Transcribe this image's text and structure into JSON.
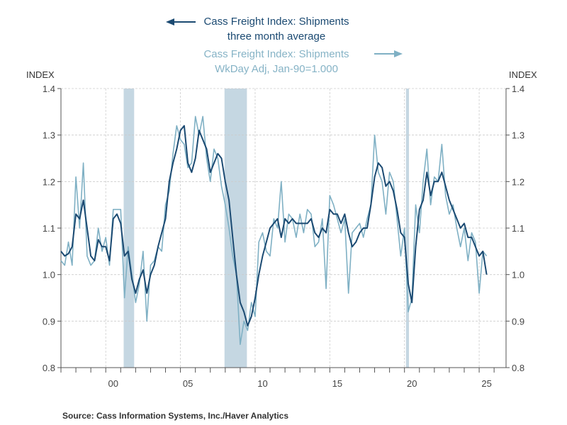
{
  "chart_data": {
    "type": "line",
    "legend": {
      "avg_line1": "Cass Freight Index: Shipments",
      "avg_line2": "three month average",
      "raw_line1": "Cass Freight Index: Shipments",
      "raw_line2": "WkDay Adj, Jan-90=1.000"
    },
    "ylabel_left": "INDEX",
    "ylabel_right": "INDEX",
    "ylim": [
      0.8,
      1.4
    ],
    "yticks": [
      "0.8",
      "0.9",
      "1.0",
      "1.1",
      "1.2",
      "1.3",
      "1.4"
    ],
    "xlim": [
      1997.0,
      2026.8
    ],
    "xtick_labels": [
      "00",
      "05",
      "10",
      "15",
      "20",
      "25"
    ],
    "xtick_years": [
      2000,
      2005,
      2010,
      2015,
      2020,
      2025
    ],
    "grid": true,
    "recessions": [
      [
        2001.2,
        2001.9
      ],
      [
        2007.95,
        2009.45
      ],
      [
        2020.1,
        2020.3
      ]
    ],
    "colors": {
      "avg": "#1b4a72",
      "raw": "#7fb0c4",
      "recession": "#c5d7e2"
    },
    "series": [
      {
        "name": "Cass Freight Index: Shipments three month average",
        "axis": "left",
        "x": [
          1997.0,
          1997.25,
          1997.5,
          1997.75,
          1998.0,
          1998.25,
          1998.5,
          1998.75,
          1999.0,
          1999.25,
          1999.5,
          1999.75,
          2000.0,
          2000.25,
          2000.5,
          2000.75,
          2001.0,
          2001.25,
          2001.5,
          2001.75,
          2002.0,
          2002.25,
          2002.5,
          2002.75,
          2003.0,
          2003.25,
          2003.5,
          2003.75,
          2004.0,
          2004.25,
          2004.5,
          2004.75,
          2005.0,
          2005.25,
          2005.5,
          2005.75,
          2006.0,
          2006.25,
          2006.5,
          2006.75,
          2007.0,
          2007.25,
          2007.5,
          2007.75,
          2008.0,
          2008.25,
          2008.5,
          2008.75,
          2009.0,
          2009.25,
          2009.5,
          2009.75,
          2010.0,
          2010.25,
          2010.5,
          2010.75,
          2011.0,
          2011.25,
          2011.5,
          2011.75,
          2012.0,
          2012.25,
          2012.5,
          2012.75,
          2013.0,
          2013.25,
          2013.5,
          2013.75,
          2014.0,
          2014.25,
          2014.5,
          2014.75,
          2015.0,
          2015.25,
          2015.5,
          2015.75,
          2016.0,
          2016.25,
          2016.5,
          2016.75,
          2017.0,
          2017.25,
          2017.5,
          2017.75,
          2018.0,
          2018.25,
          2018.5,
          2018.75,
          2019.0,
          2019.25,
          2019.5,
          2019.75,
          2020.0,
          2020.25,
          2020.5,
          2020.75,
          2021.0,
          2021.25,
          2021.5,
          2021.75,
          2022.0,
          2022.25,
          2022.5,
          2022.75,
          2023.0,
          2023.25,
          2023.5,
          2023.75,
          2024.0,
          2024.25,
          2024.5,
          2024.75,
          2025.0,
          2025.25,
          2025.5
        ],
        "values": [
          1.05,
          1.04,
          1.045,
          1.06,
          1.13,
          1.12,
          1.16,
          1.1,
          1.04,
          1.03,
          1.075,
          1.06,
          1.06,
          1.03,
          1.12,
          1.13,
          1.11,
          1.04,
          1.05,
          0.99,
          0.96,
          0.99,
          1.01,
          0.96,
          1.0,
          1.02,
          1.06,
          1.09,
          1.12,
          1.2,
          1.24,
          1.27,
          1.31,
          1.32,
          1.24,
          1.22,
          1.25,
          1.31,
          1.29,
          1.27,
          1.22,
          1.24,
          1.26,
          1.25,
          1.2,
          1.16,
          1.08,
          1.0,
          0.94,
          0.92,
          0.89,
          0.91,
          0.95,
          1.0,
          1.04,
          1.07,
          1.1,
          1.11,
          1.12,
          1.08,
          1.12,
          1.11,
          1.12,
          1.11,
          1.11,
          1.11,
          1.11,
          1.12,
          1.09,
          1.08,
          1.1,
          1.09,
          1.14,
          1.13,
          1.13,
          1.11,
          1.13,
          1.09,
          1.06,
          1.07,
          1.09,
          1.1,
          1.1,
          1.15,
          1.21,
          1.24,
          1.23,
          1.19,
          1.2,
          1.18,
          1.14,
          1.09,
          1.08,
          0.98,
          0.94,
          1.06,
          1.14,
          1.16,
          1.22,
          1.17,
          1.2,
          1.2,
          1.22,
          1.19,
          1.16,
          1.14,
          1.12,
          1.1,
          1.11,
          1.08,
          1.08,
          1.06,
          1.04,
          1.05,
          1.0
        ]
      },
      {
        "name": "Cass Freight Index: Shipments WkDay Adj, Jan-90=1.000",
        "axis": "right",
        "x": [
          1997.0,
          1997.25,
          1997.5,
          1997.75,
          1998.0,
          1998.25,
          1998.5,
          1998.75,
          1999.0,
          1999.25,
          1999.5,
          1999.75,
          2000.0,
          2000.25,
          2000.5,
          2000.75,
          2001.0,
          2001.25,
          2001.5,
          2001.75,
          2002.0,
          2002.25,
          2002.5,
          2002.75,
          2003.0,
          2003.25,
          2003.5,
          2003.75,
          2004.0,
          2004.25,
          2004.5,
          2004.75,
          2005.0,
          2005.25,
          2005.5,
          2005.75,
          2006.0,
          2006.25,
          2006.5,
          2006.75,
          2007.0,
          2007.25,
          2007.5,
          2007.75,
          2008.0,
          2008.25,
          2008.5,
          2008.75,
          2009.0,
          2009.25,
          2009.5,
          2009.75,
          2010.0,
          2010.25,
          2010.5,
          2010.75,
          2011.0,
          2011.25,
          2011.5,
          2011.75,
          2012.0,
          2012.25,
          2012.5,
          2012.75,
          2013.0,
          2013.25,
          2013.5,
          2013.75,
          2014.0,
          2014.25,
          2014.5,
          2014.75,
          2015.0,
          2015.25,
          2015.5,
          2015.75,
          2016.0,
          2016.25,
          2016.5,
          2016.75,
          2017.0,
          2017.25,
          2017.5,
          2017.75,
          2018.0,
          2018.25,
          2018.5,
          2018.75,
          2019.0,
          2019.25,
          2019.5,
          2019.75,
          2020.0,
          2020.25,
          2020.5,
          2020.75,
          2021.0,
          2021.25,
          2021.5,
          2021.75,
          2022.0,
          2022.25,
          2022.5,
          2022.75,
          2023.0,
          2023.25,
          2023.5,
          2023.75,
          2024.0,
          2024.25,
          2024.5,
          2024.75,
          2025.0,
          2025.25,
          2025.5
        ],
        "values": [
          1.03,
          1.02,
          1.07,
          1.02,
          1.21,
          1.1,
          1.24,
          1.04,
          1.02,
          1.03,
          1.1,
          1.05,
          1.08,
          1.02,
          1.14,
          1.14,
          1.14,
          0.95,
          1.06,
          1.0,
          0.94,
          0.98,
          1.05,
          0.9,
          1.02,
          1.03,
          1.06,
          1.05,
          1.15,
          1.18,
          1.26,
          1.32,
          1.29,
          1.28,
          1.23,
          1.24,
          1.34,
          1.3,
          1.34,
          1.25,
          1.2,
          1.27,
          1.25,
          1.19,
          1.15,
          1.1,
          1.04,
          1.0,
          0.85,
          0.9,
          0.88,
          0.94,
          0.91,
          1.07,
          1.09,
          1.05,
          1.04,
          1.12,
          1.1,
          1.2,
          1.07,
          1.13,
          1.12,
          1.08,
          1.13,
          1.09,
          1.14,
          1.13,
          1.06,
          1.07,
          1.12,
          0.97,
          1.17,
          1.15,
          1.12,
          1.09,
          1.12,
          0.96,
          1.09,
          1.1,
          1.11,
          1.08,
          1.12,
          1.15,
          1.3,
          1.22,
          1.2,
          1.13,
          1.22,
          1.2,
          1.12,
          1.04,
          1.1,
          0.92,
          0.95,
          1.15,
          1.09,
          1.2,
          1.27,
          1.15,
          1.21,
          1.2,
          1.28,
          1.17,
          1.13,
          1.15,
          1.1,
          1.06,
          1.1,
          1.03,
          1.09,
          1.07,
          0.96,
          1.05,
          1.04
        ]
      }
    ]
  },
  "source": "Source:  Cass Information Systems, Inc./Haver Analytics"
}
